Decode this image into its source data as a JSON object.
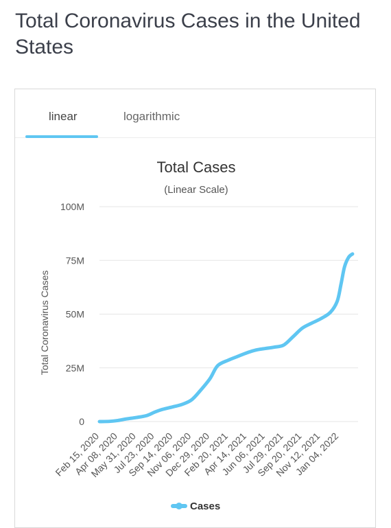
{
  "page": {
    "title": "Total Coronavirus Cases in the United States"
  },
  "tabs": [
    {
      "label": "linear",
      "active": true
    },
    {
      "label": "logarithmic",
      "active": false
    }
  ],
  "colors": {
    "accent": "#5fc6f2",
    "series": "#5fc6f2",
    "grid": "#e6e6e6"
  },
  "chart_data": {
    "type": "line",
    "title": "Total Cases",
    "subtitle": "(Linear Scale)",
    "ylabel": "Total Coronavirus Cases",
    "xlabel": "",
    "ylim": [
      0,
      100000000
    ],
    "yticks": [
      {
        "value": 0,
        "label": "0"
      },
      {
        "value": 25000000,
        "label": "25M"
      },
      {
        "value": 50000000,
        "label": "50M"
      },
      {
        "value": 75000000,
        "label": "75M"
      },
      {
        "value": 100000000,
        "label": "100M"
      }
    ],
    "xlim": [
      "2020-02-15",
      "2022-02-28"
    ],
    "xticks": [
      "Feb 15, 2020",
      "Apr 08, 2020",
      "May 31, 2020",
      "Jul 23, 2020",
      "Sep 14, 2020",
      "Nov 06, 2020",
      "Dec 29, 2020",
      "Feb 20, 2021",
      "Apr 14, 2021",
      "Jun 06, 2021",
      "Jul 29, 2021",
      "Sep 20, 2021",
      "Nov 12, 2021",
      "Jan 04, 2022"
    ],
    "grid": true,
    "legend": "bottom",
    "series": [
      {
        "name": "Cases",
        "color": "#5fc6f2",
        "x": [
          "2020-02-15",
          "2020-03-15",
          "2020-04-08",
          "2020-05-01",
          "2020-05-31",
          "2020-06-30",
          "2020-07-23",
          "2020-08-15",
          "2020-09-14",
          "2020-10-10",
          "2020-11-06",
          "2020-12-01",
          "2020-12-29",
          "2021-01-20",
          "2021-02-20",
          "2021-03-20",
          "2021-04-14",
          "2021-05-10",
          "2021-06-06",
          "2021-07-01",
          "2021-07-29",
          "2021-08-25",
          "2021-09-20",
          "2021-10-15",
          "2021-11-12",
          "2021-12-10",
          "2021-12-30",
          "2022-01-10",
          "2022-01-20",
          "2022-02-01",
          "2022-02-12"
        ],
        "values": [
          0,
          100000,
          500000,
          1200000,
          1900000,
          2800000,
          4400000,
          5700000,
          6900000,
          8000000,
          10100000,
          14400000,
          20000000,
          26000000,
          28600000,
          30400000,
          32000000,
          33300000,
          34000000,
          34600000,
          35600000,
          39500000,
          43400000,
          45600000,
          47800000,
          50800000,
          56000000,
          64000000,
          72000000,
          76500000,
          78000000
        ]
      }
    ]
  }
}
